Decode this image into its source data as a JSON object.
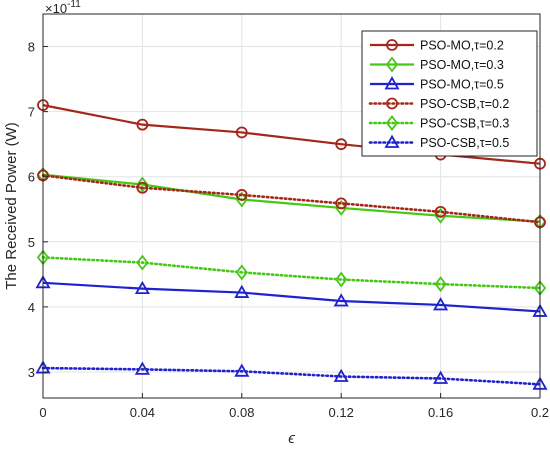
{
  "chart_data": {
    "type": "line",
    "xlabel": "ϵ",
    "ylabel": "The Received Power (W)",
    "y_exponent_base": "×10",
    "y_exponent_power": "-11",
    "x": [
      0,
      0.04,
      0.08,
      0.12,
      0.16,
      0.2
    ],
    "x_tick_labels": [
      "0",
      "0.04",
      "0.08",
      "0.12",
      "0.16",
      "0.2"
    ],
    "xlim": [
      0,
      0.2
    ],
    "y_ticks": [
      3,
      4,
      5,
      6,
      7,
      8
    ],
    "y_tick_labels": [
      "3",
      "4",
      "5",
      "6",
      "7",
      "8"
    ],
    "ylim": [
      2.6,
      8.5
    ],
    "grid": true,
    "legend_position": "top-right",
    "series": [
      {
        "name": "PSO-MO,τ=0.2",
        "values": [
          7.1,
          6.8,
          6.68,
          6.5,
          6.34,
          6.2
        ],
        "color": "#a3281b",
        "marker": "circle",
        "line": "solid"
      },
      {
        "name": "PSO-MO,τ=0.3",
        "values": [
          6.03,
          5.88,
          5.65,
          5.52,
          5.4,
          5.31
        ],
        "color": "#44c814",
        "marker": "diamond",
        "line": "solid"
      },
      {
        "name": "PSO-MO,τ=0.5",
        "values": [
          4.37,
          4.28,
          4.22,
          4.09,
          4.03,
          3.93
        ],
        "color": "#1e22cf",
        "marker": "triangle",
        "line": "solid"
      },
      {
        "name": "PSO-CSB,τ=0.2",
        "values": [
          6.02,
          5.83,
          5.72,
          5.59,
          5.46,
          5.3
        ],
        "color": "#a3281b",
        "marker": "circle",
        "line": "dotted"
      },
      {
        "name": "PSO-CSB,τ=0.3",
        "values": [
          4.76,
          4.68,
          4.53,
          4.42,
          4.35,
          4.29
        ],
        "color": "#44c814",
        "marker": "diamond",
        "line": "dotted"
      },
      {
        "name": "PSO-CSB,τ=0.5",
        "values": [
          3.06,
          3.04,
          3.01,
          2.93,
          2.9,
          2.81
        ],
        "color": "#1e22cf",
        "marker": "triangle",
        "line": "dotted"
      }
    ]
  }
}
